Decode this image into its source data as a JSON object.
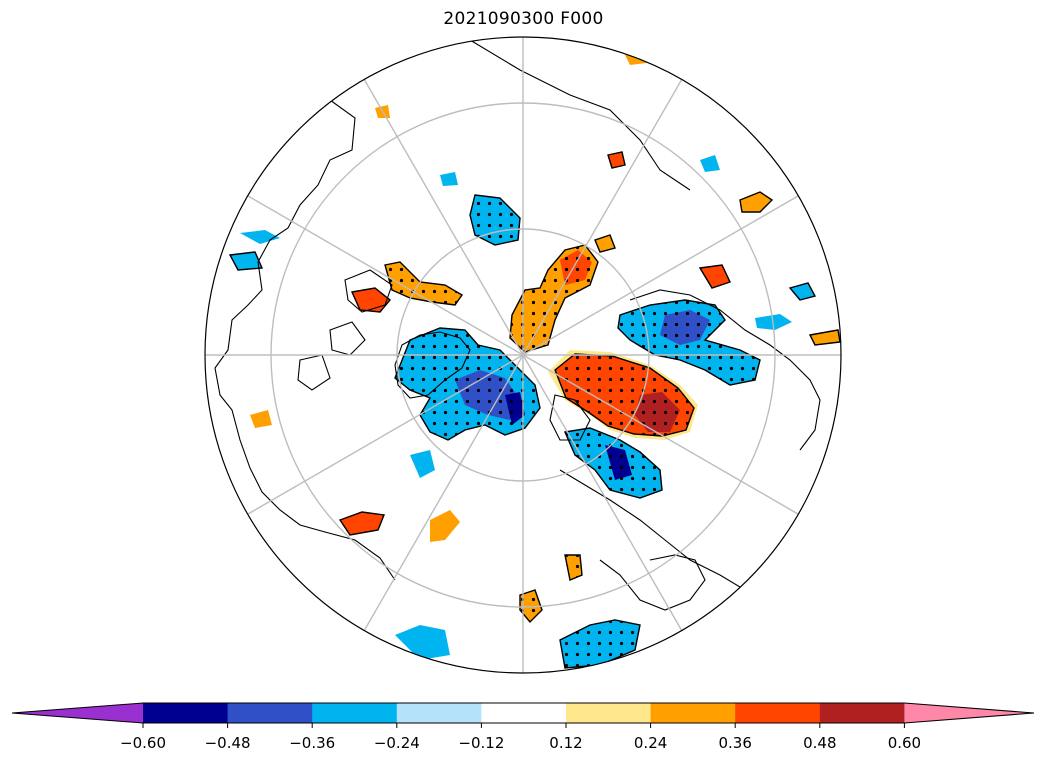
{
  "title": "2021090300 F000",
  "colorbar": {
    "extend": "both",
    "colors": [
      "#9b30d0",
      "#000090",
      "#3050c8",
      "#00b4f0",
      "#b4e2fa",
      "#ffffff",
      "#ffe88c",
      "#ffa000",
      "#ff4500",
      "#b02020",
      "#ff88a8"
    ],
    "tick_labels": [
      "−0.60",
      "−0.48",
      "−0.36",
      "−0.24",
      "−0.12",
      "0.12",
      "0.24",
      "0.36",
      "0.48",
      "0.60"
    ],
    "boundaries": [
      -0.6,
      -0.48,
      -0.36,
      -0.24,
      -0.12,
      0.12,
      0.24,
      0.36,
      0.48,
      0.6
    ]
  },
  "map": {
    "projection": "north-polar-stereographic",
    "graticule_color": "#bdbdbd",
    "coastline_color": "#000000",
    "stippling": "black dots mark significant regions"
  }
}
